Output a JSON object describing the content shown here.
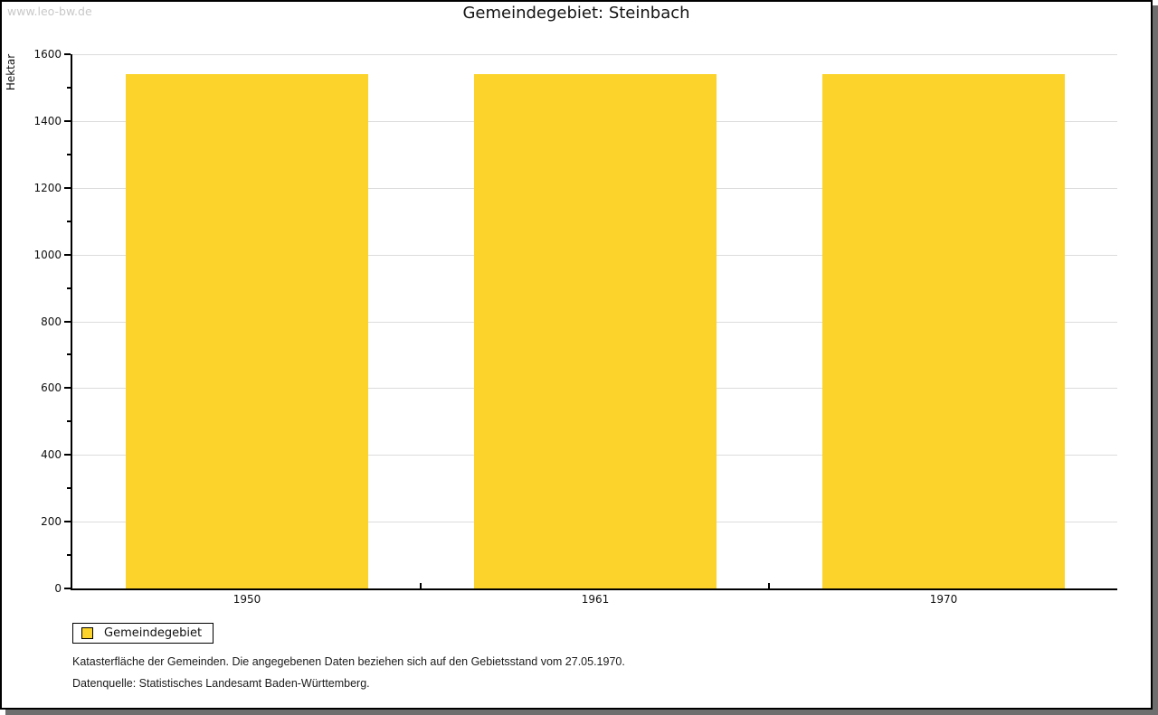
{
  "page": {
    "watermark": "www.leo-bw.de",
    "title": "Gemeindegebiet: Steinbach"
  },
  "chart_data": {
    "type": "bar",
    "title": "Gemeindegebiet: Steinbach",
    "ylabel": "Hektar",
    "xlabel": "",
    "categories": [
      "1950",
      "1961",
      "1970"
    ],
    "series": [
      {
        "name": "Gemeindegebiet",
        "color": "#fcd32b",
        "values": [
          1540,
          1540,
          1540
        ]
      }
    ],
    "ylim": [
      0,
      1600
    ],
    "ytick_major_step": 200,
    "ytick_minor_step": 100,
    "grid": true,
    "legend_position": "bottom-left"
  },
  "legend": {
    "items": [
      {
        "label": "Gemeindegebiet",
        "color": "#fcd32b"
      }
    ]
  },
  "footnotes": {
    "line1": "Katasterfläche der Gemeinden. Die angegebenen Daten beziehen sich auf den Gebietsstand vom 27.05.1970.",
    "line2": "Datenquelle: Statistisches Landesamt Baden-Württemberg."
  },
  "colors": {
    "bar": "#fcd32b",
    "grid": "#dcdcdc",
    "axis": "#000000",
    "shadow": "#6e6e6e",
    "watermark": "#c8c8c8",
    "text": "#111111"
  }
}
